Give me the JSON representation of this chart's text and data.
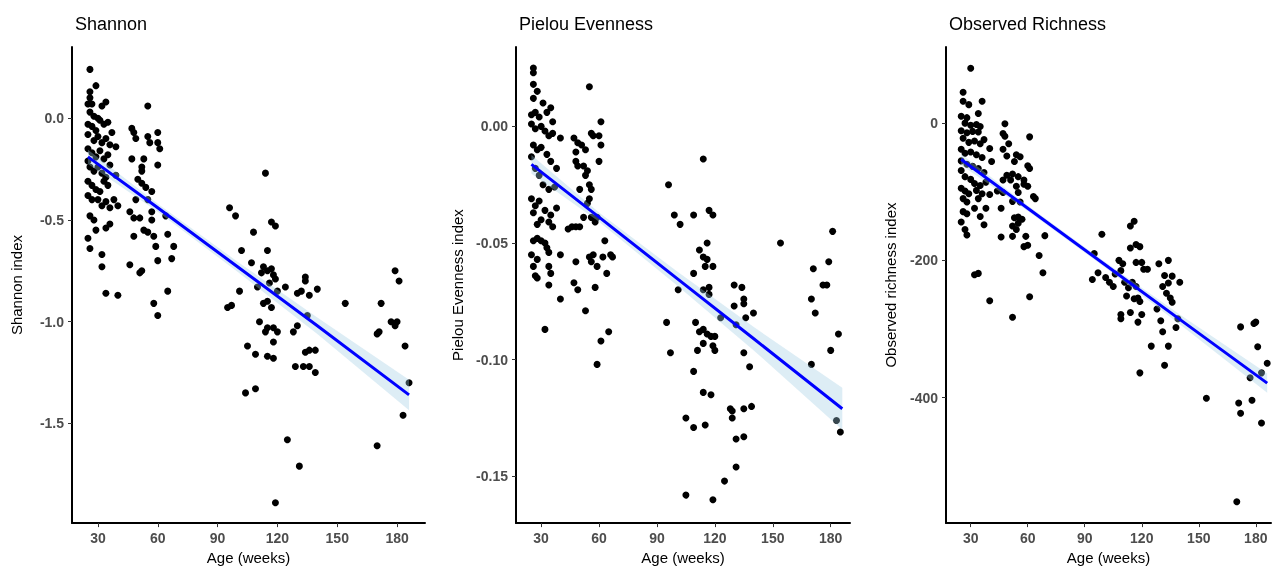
{
  "chart_data": [
    {
      "type": "scatter",
      "title": "Shannon",
      "xlabel": "Age (weeks)",
      "ylabel": "Shannon index",
      "xlim": [
        17,
        194
      ],
      "xticks": [
        30,
        60,
        90,
        120,
        150,
        180
      ],
      "ylim": [
        -1.99,
        0.35
      ],
      "yticks": [
        {
          "value": -1.5,
          "label": "-1.5"
        },
        {
          "value": -1,
          "label": "-1.0"
        },
        {
          "value": -0.5,
          "label": "-0.5"
        },
        {
          "value": 0,
          "label": "0.0"
        }
      ],
      "series": [
        {
          "marker": "circle",
          "color": "#000000",
          "x": [
            26,
            29,
            26,
            26,
            25,
            27,
            32,
            34,
            26,
            28,
            30,
            25,
            27,
            29,
            31,
            33,
            35,
            37,
            25,
            28,
            30,
            32,
            34,
            36,
            39,
            25,
            27,
            29,
            31,
            33,
            35,
            25,
            26,
            28,
            30,
            32,
            34,
            36,
            39,
            25,
            27,
            29,
            31,
            33,
            35,
            25,
            27,
            30,
            32,
            34,
            36,
            38,
            40,
            26,
            28,
            29,
            34,
            36,
            25,
            26,
            32,
            32,
            34,
            40,
            47,
            48,
            49,
            47,
            52,
            52,
            53,
            55,
            56,
            55,
            60,
            60,
            61,
            60,
            50,
            52,
            54,
            57,
            55,
            49,
            46,
            48,
            51,
            57,
            57,
            53,
            55,
            58,
            48,
            59,
            64,
            65,
            68,
            60,
            67,
            46,
            51,
            52,
            65,
            58,
            60,
            96,
            99,
            108,
            114,
            117,
            119,
            102,
            107,
            115,
            113,
            117,
            112,
            115,
            118,
            119,
            110,
            116,
            120,
            124,
            101,
            95,
            97,
            113,
            115,
            117,
            111,
            115,
            118,
            120,
            114,
            118,
            105,
            109,
            115,
            118,
            104,
            109,
            130,
            132,
            134,
            134,
            136,
            140,
            135,
            130,
            128,
            134,
            136,
            139,
            129,
            133,
            136,
            139,
            125,
            131,
            119,
            154,
            170,
            171,
            172,
            177,
            179,
            180,
            179,
            181,
            184,
            186,
            183,
            170
          ],
          "values": [
            0.24,
            0.16,
            0.13,
            0.1,
            0.07,
            0.07,
            0.06,
            0.08,
            0.03,
            0.01,
            0.0,
            -0.03,
            -0.04,
            -0.06,
            -0.01,
            -0.03,
            -0.02,
            -0.07,
            -0.08,
            -0.11,
            -0.09,
            -0.12,
            -0.1,
            -0.13,
            -0.14,
            -0.15,
            -0.17,
            -0.19,
            -0.16,
            -0.2,
            -0.18,
            -0.21,
            -0.24,
            -0.26,
            -0.24,
            -0.27,
            -0.29,
            -0.23,
            -0.28,
            -0.31,
            -0.33,
            -0.35,
            -0.36,
            -0.31,
            -0.33,
            -0.38,
            -0.4,
            -0.4,
            -0.43,
            -0.41,
            -0.44,
            -0.4,
            -0.43,
            -0.48,
            -0.5,
            -0.55,
            -0.54,
            -0.52,
            -0.59,
            -0.64,
            -0.67,
            -0.73,
            -0.86,
            -0.87,
            -0.05,
            -0.07,
            -0.1,
            -0.2,
            -0.24,
            -0.26,
            -0.2,
            -0.09,
            -0.12,
            0.06,
            -0.07,
            -0.12,
            -0.15,
            -0.23,
            -0.3,
            -0.32,
            -0.34,
            -0.36,
            -0.4,
            -0.4,
            -0.46,
            -0.49,
            -0.49,
            -0.46,
            -0.5,
            -0.55,
            -0.56,
            -0.58,
            -0.58,
            -0.63,
            -0.48,
            -0.57,
            -0.63,
            -0.7,
            -0.69,
            -0.72,
            -0.76,
            -0.75,
            -0.85,
            -0.91,
            -0.97,
            -0.44,
            -0.48,
            -0.56,
            -0.27,
            -0.51,
            -0.53,
            -0.65,
            -0.71,
            -0.65,
            -0.73,
            -0.74,
            -0.76,
            -0.75,
            -0.77,
            -0.79,
            -0.83,
            -0.81,
            -0.85,
            -0.83,
            -0.85,
            -0.93,
            -0.92,
            -0.91,
            -0.9,
            -0.93,
            -1.0,
            -1.03,
            -1.03,
            -1.05,
            -1.05,
            -1.1,
            -1.12,
            -1.16,
            -1.17,
            -1.18,
            -1.35,
            -1.33,
            -0.86,
            -0.85,
            -0.78,
            -0.8,
            -0.87,
            -0.84,
            -0.97,
            -1.02,
            -1.05,
            -1.15,
            -1.14,
            -1.14,
            -1.22,
            -1.22,
            -1.22,
            -1.25,
            -1.58,
            -1.71,
            -1.89,
            -0.91,
            -1.06,
            -1.05,
            -0.91,
            -1.0,
            -1.02,
            -1.0,
            -0.75,
            -0.8,
            -1.12,
            -1.3,
            -1.46,
            -1.61
          ]
        },
        {
          "type": "line",
          "marker": "none",
          "color": "#0000ff",
          "x": [
            25,
            60,
            100,
            140,
            186
          ],
          "values": [
            -0.19,
            -0.44,
            -0.73,
            -1.02,
            -1.36
          ],
          "lower": [
            -0.225,
            -0.46,
            -0.755,
            -1.06,
            -1.435
          ],
          "upper": [
            -0.155,
            -0.42,
            -0.705,
            -0.98,
            -1.285
          ]
        }
      ]
    },
    {
      "type": "scatter",
      "title": "Pielou Evenness",
      "xlabel": "Age (weeks)",
      "ylabel": "Pielou Evenness index",
      "xlim": [
        17,
        190
      ],
      "xticks": [
        30,
        60,
        90,
        120,
        150,
        180
      ],
      "ylim": [
        -0.17,
        0.034
      ],
      "yticks": [
        {
          "value": -0.15,
          "label": "-0.15"
        },
        {
          "value": -0.1,
          "label": "-0.10"
        },
        {
          "value": -0.05,
          "label": "-0.05"
        },
        {
          "value": 0,
          "label": "0.00"
        }
      ],
      "series": [
        {
          "marker": "circle",
          "color": "#000000",
          "x": [
            26,
            26,
            26,
            28,
            26,
            31,
            35,
            25,
            27,
            29,
            33,
            36,
            25,
            27,
            30,
            32,
            34,
            36,
            40,
            26,
            28,
            30,
            33,
            35,
            38,
            25,
            27,
            29,
            31,
            34,
            37,
            25,
            27,
            29,
            32,
            35,
            38,
            26,
            28,
            30,
            34,
            36,
            28,
            26,
            30,
            32,
            33,
            34,
            25,
            28,
            26,
            27,
            28,
            35,
            34,
            34,
            40,
            32,
            40,
            55,
            47,
            49,
            51,
            53,
            48,
            56,
            57,
            61,
            60,
            61,
            60,
            48,
            49,
            52,
            54,
            53,
            55,
            56,
            50,
            55,
            54,
            52,
            56,
            58,
            59,
            46,
            48,
            50,
            44,
            63,
            57,
            55,
            62,
            66,
            67,
            48,
            56,
            59,
            64,
            47,
            49,
            58,
            53,
            65,
            61,
            59,
            96,
            114,
            99,
            102,
            109,
            117,
            119,
            116,
            112,
            114,
            116,
            115,
            119,
            109,
            101,
            114,
            117,
            117,
            95,
            110,
            112,
            114,
            116,
            118,
            120,
            114,
            119,
            120,
            111,
            97,
            109,
            114,
            118,
            105,
            109,
            115,
            105,
            119,
            123,
            130,
            134,
            135,
            135,
            130,
            131,
            136,
            140,
            135,
            138,
            128,
            129,
            129,
            135,
            139,
            131,
            135,
            131,
            125,
            154,
            171,
            181,
            179,
            176,
            178,
            170,
            172,
            170,
            180,
            184,
            183,
            185
          ],
          "values": [
            0.025,
            0.023,
            0.018,
            0.015,
            0.012,
            0.01,
            0.008,
            0.005,
            0.006,
            0.004,
            0.006,
            0.002,
            0.001,
            -0.001,
            0.0,
            -0.002,
            -0.004,
            -0.003,
            -0.005,
            -0.008,
            -0.01,
            -0.009,
            -0.012,
            -0.015,
            -0.018,
            -0.013,
            -0.018,
            -0.021,
            -0.025,
            -0.027,
            -0.026,
            -0.031,
            -0.034,
            -0.032,
            -0.036,
            -0.038,
            -0.035,
            -0.037,
            -0.042,
            -0.04,
            -0.041,
            -0.043,
            -0.048,
            -0.049,
            -0.049,
            -0.05,
            -0.052,
            -0.054,
            -0.055,
            -0.057,
            -0.06,
            -0.064,
            -0.065,
            -0.063,
            -0.06,
            -0.068,
            -0.074,
            -0.087,
            -0.055,
            0.017,
            -0.005,
            -0.007,
            -0.008,
            -0.01,
            -0.011,
            -0.003,
            -0.004,
            0.002,
            -0.004,
            -0.008,
            -0.015,
            -0.015,
            -0.017,
            -0.017,
            -0.019,
            -0.021,
            -0.025,
            -0.027,
            -0.027,
            -0.031,
            -0.033,
            -0.039,
            -0.039,
            -0.041,
            -0.039,
            -0.043,
            -0.043,
            -0.043,
            -0.044,
            -0.049,
            -0.055,
            -0.056,
            -0.056,
            -0.055,
            -0.056,
            -0.058,
            -0.058,
            -0.06,
            -0.063,
            -0.067,
            -0.07,
            -0.069,
            -0.079,
            -0.088,
            -0.092,
            -0.102,
            -0.025,
            -0.014,
            -0.038,
            -0.042,
            -0.038,
            -0.036,
            -0.038,
            -0.05,
            -0.053,
            -0.056,
            -0.057,
            -0.06,
            -0.06,
            -0.063,
            -0.07,
            -0.07,
            -0.069,
            -0.072,
            -0.084,
            -0.084,
            -0.088,
            -0.087,
            -0.089,
            -0.09,
            -0.09,
            -0.093,
            -0.094,
            -0.096,
            -0.096,
            -0.097,
            -0.105,
            -0.114,
            -0.115,
            -0.125,
            -0.129,
            -0.128,
            -0.158,
            -0.16,
            -0.082,
            -0.068,
            -0.069,
            -0.074,
            -0.076,
            -0.077,
            -0.085,
            -0.082,
            -0.08,
            -0.097,
            -0.103,
            -0.121,
            -0.122,
            -0.125,
            -0.121,
            -0.12,
            -0.134,
            -0.133,
            -0.146,
            -0.152,
            -0.05,
            -0.061,
            -0.045,
            -0.058,
            -0.068,
            -0.068,
            -0.074,
            -0.08,
            -0.102,
            -0.096,
            -0.089,
            -0.126,
            -0.131
          ]
        },
        {
          "type": "line",
          "marker": "none",
          "color": "#0000ff",
          "x": [
            25,
            60,
            100,
            140,
            186
          ],
          "values": [
            -0.0163,
            -0.0389,
            -0.0649,
            -0.0909,
            -0.121
          ],
          "lower": [
            -0.0203,
            -0.0409,
            -0.0679,
            -0.0959,
            -0.13
          ],
          "upper": [
            -0.0123,
            -0.0369,
            -0.0619,
            -0.0859,
            -0.112
          ]
        }
      ]
    },
    {
      "type": "scatter",
      "title": "Observed Richness",
      "xlabel": "Age (weeks)",
      "ylabel": "Observed richness index",
      "xlim": [
        17,
        188
      ],
      "xticks": [
        30,
        60,
        90,
        120,
        150,
        180
      ],
      "ylim": [
        -583,
        111
      ],
      "yticks": [
        -400,
        -200,
        0
      ],
      "series": [
        {
          "marker": "circle",
          "color": "#000000",
          "x": [
            30,
            26,
            26,
            29,
            36,
            25,
            28,
            34,
            27,
            30,
            33,
            35,
            25,
            28,
            31,
            34,
            37,
            26,
            29,
            32,
            35,
            40,
            25,
            27,
            30,
            33,
            36,
            41,
            25,
            28,
            31,
            34,
            37,
            25,
            27,
            30,
            32,
            35,
            38,
            25,
            27,
            29,
            33,
            36,
            40,
            26,
            28,
            34,
            38,
            26,
            28,
            32,
            35,
            37,
            25,
            27,
            28,
            32,
            34,
            40,
            48,
            47,
            48,
            50,
            47,
            49,
            54,
            56,
            53,
            61,
            60,
            61,
            49,
            52,
            55,
            58,
            47,
            51,
            54,
            58,
            44,
            47,
            55,
            52,
            56,
            60,
            63,
            64,
            46,
            53,
            55,
            57,
            52,
            54,
            55,
            46,
            52,
            59,
            58,
            60,
            69,
            66,
            68,
            61,
            52,
            99,
            95,
            97,
            94,
            101,
            103,
            105,
            106,
            108,
            110,
            109,
            111,
            113,
            115,
            117,
            112,
            116,
            118,
            114,
            116,
            114,
            117,
            119,
            117,
            120,
            121,
            123,
            119,
            109,
            109,
            114,
            118,
            120,
            119,
            125,
            129,
            132,
            134,
            131,
            134,
            136,
            140,
            133,
            135,
            136,
            128,
            130,
            131,
            139,
            138,
            134,
            132,
            154,
            172,
            179,
            180,
            181,
            186,
            183,
            177,
            171,
            172,
            178,
            183,
            170
          ],
          "values": [
            80,
            45,
            32,
            27,
            32,
            10,
            8,
            14,
            0,
            -3,
            -2,
            -5,
            -11,
            -14,
            -12,
            -13,
            -24,
            -22,
            -28,
            -26,
            -30,
            -37,
            -38,
            -44,
            -42,
            -46,
            -50,
            -56,
            -55,
            -60,
            -63,
            -66,
            -72,
            -69,
            -78,
            -82,
            -88,
            -91,
            -86,
            -95,
            -99,
            -103,
            -98,
            -103,
            -104,
            -110,
            -115,
            -110,
            -124,
            -129,
            -132,
            -124,
            -136,
            -148,
            -144,
            -155,
            -163,
            -221,
            -219,
            -259,
            -1,
            -15,
            -19,
            -30,
            -38,
            -48,
            -46,
            -49,
            -56,
            -20,
            -62,
            -66,
            -76,
            -74,
            -78,
            -83,
            -83,
            -83,
            -92,
            -89,
            -99,
            -101,
            -101,
            -114,
            -115,
            -92,
            -107,
            -110,
            -124,
            -138,
            -137,
            -140,
            -150,
            -155,
            -146,
            -166,
            -165,
            -165,
            -180,
            -178,
            -164,
            -193,
            -218,
            -253,
            -283,
            -162,
            -190,
            -218,
            -228,
            -225,
            -232,
            -238,
            -220,
            -200,
            -205,
            -215,
            -232,
            -240,
            -232,
            -238,
            -252,
            -256,
            -255,
            -150,
            -143,
            -182,
            -177,
            -180,
            -203,
            -203,
            -213,
            -213,
            -260,
            -279,
            -285,
            -276,
            -290,
            -279,
            -364,
            -325,
            -205,
            -222,
            -200,
            -238,
            -233,
            -223,
            -232,
            -248,
            -255,
            -261,
            -271,
            -288,
            -304,
            -285,
            -298,
            -325,
            -353,
            -401,
            -297,
            -292,
            -290,
            -326,
            -350,
            -364,
            -371,
            -408,
            -423,
            -404,
            -437,
            -552
          ]
        },
        {
          "type": "line",
          "marker": "none",
          "color": "#0000ff",
          "x": [
            25,
            60,
            100,
            140,
            186
          ],
          "values": [
            -53,
            -124,
            -205,
            -286,
            -379
          ],
          "lower": [
            -61,
            -128,
            -209,
            -293,
            -393
          ],
          "upper": [
            -45,
            -120,
            -201,
            -279,
            -365
          ]
        }
      ]
    }
  ]
}
